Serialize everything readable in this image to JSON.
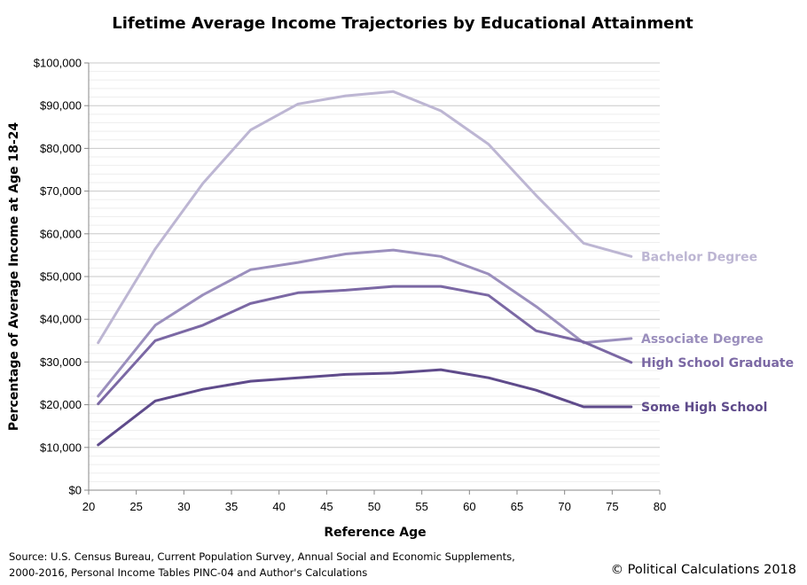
{
  "chart_data": {
    "type": "line",
    "title": "Lifetime Average Income Trajectories by Educational Attainment",
    "xlabel": "Reference Age",
    "ylabel": "Percentage of Average Income at Age 18-24",
    "xlim": [
      20,
      80
    ],
    "ylim": [
      0,
      100000
    ],
    "x_ticks": [
      "20",
      "25",
      "30",
      "35",
      "40",
      "45",
      "50",
      "55",
      "60",
      "65",
      "70",
      "75",
      "80"
    ],
    "y_ticks": [
      "$0",
      "$10,000",
      "$20,000",
      "$30,000",
      "$40,000",
      "$50,000",
      "$60,000",
      "$70,000",
      "$80,000",
      "$90,000",
      "$100,000"
    ],
    "grid": true,
    "x": [
      21,
      27,
      32,
      37,
      42,
      47,
      52,
      57,
      62,
      67,
      72,
      77
    ],
    "series": [
      {
        "name": "Bachelor Degree",
        "color": "#bdb6d3",
        "values": [
          34500,
          56500,
          71800,
          84300,
          90400,
          92300,
          93300,
          88800,
          81000,
          69000,
          57800,
          54700
        ]
      },
      {
        "name": "Associate Degree",
        "color": "#9b8fbd",
        "values": [
          22000,
          38600,
          45700,
          51600,
          53300,
          55300,
          56200,
          54700,
          50600,
          43000,
          34500,
          35500
        ]
      },
      {
        "name": "High School Graduate",
        "color": "#7b68a4",
        "values": [
          20200,
          35000,
          38600,
          43700,
          46200,
          46800,
          47700,
          47700,
          45600,
          37300,
          34700,
          29900
        ]
      },
      {
        "name": "Some High School",
        "color": "#5f4b8b",
        "values": [
          10600,
          20900,
          23600,
          25500,
          26300,
          27100,
          27400,
          28200,
          26300,
          23400,
          19500,
          19500
        ]
      }
    ]
  },
  "footnote": {
    "line1": "Source:  U.S. Census Bureau, Current Population Survey, Annual Social and Economic Supplements,",
    "line2": "2000-2016,  Personal Income Tables PINC-04 and Author's Calculations"
  },
  "copyright": "© Political Calculations 2018"
}
